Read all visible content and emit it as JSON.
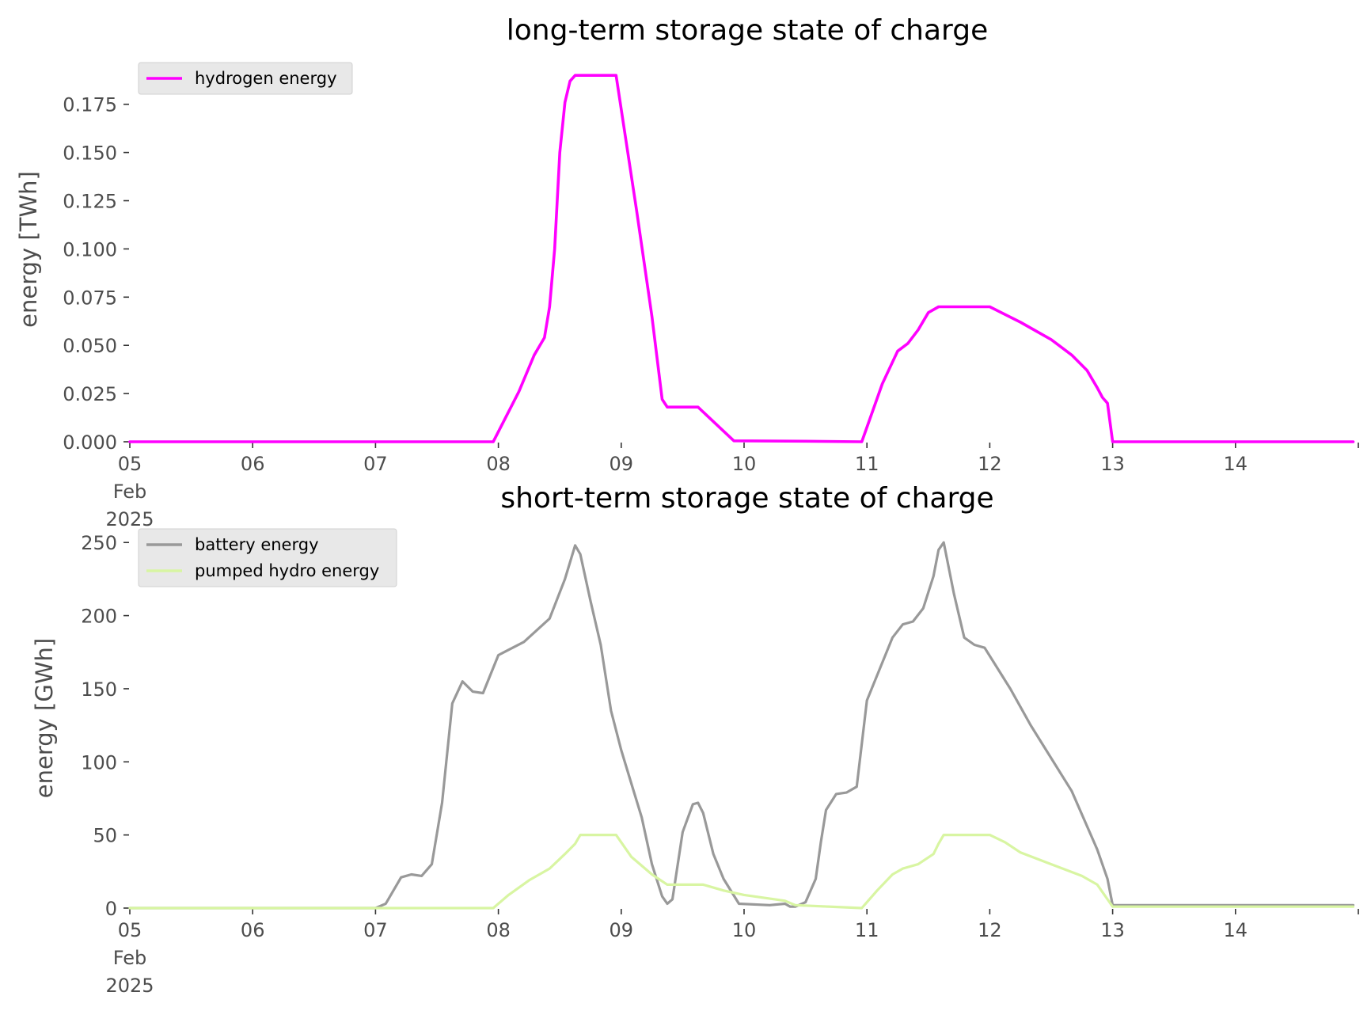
{
  "colors": {
    "hydrogen": "#ff00ff",
    "battery": "#999999",
    "pumped_hydro": "#d8f5a2",
    "legend_bg": "#e8e8e8"
  },
  "chart_data": [
    {
      "type": "line",
      "title": "long-term storage state of charge",
      "xlabel": "",
      "ylabel": "energy [TWh]",
      "x_axis": "date",
      "xlim": [
        "2025-02-05 00:00",
        "2025-02-15 00:00"
      ],
      "x_tick_labels": [
        {
          "x": "2025-02-05",
          "label": "05",
          "extra": [
            "Feb",
            "2025"
          ]
        },
        {
          "x": "2025-02-06",
          "label": "06"
        },
        {
          "x": "2025-02-07",
          "label": "07"
        },
        {
          "x": "2025-02-08",
          "label": "08"
        },
        {
          "x": "2025-02-09",
          "label": "09"
        },
        {
          "x": "2025-02-10",
          "label": "10"
        },
        {
          "x": "2025-02-11",
          "label": "11"
        },
        {
          "x": "2025-02-12",
          "label": "12"
        },
        {
          "x": "2025-02-13",
          "label": "13"
        },
        {
          "x": "2025-02-14",
          "label": "14"
        }
      ],
      "ylim": [
        0,
        0.195
      ],
      "y_ticks": [
        0,
        0.025,
        0.05,
        0.075,
        0.1,
        0.125,
        0.15,
        0.175
      ],
      "y_tick_labels": [
        "0.000",
        "0.025",
        "0.050",
        "0.075",
        "0.100",
        "0.125",
        "0.150",
        "0.175"
      ],
      "grid": false,
      "legend": "top-left",
      "series": [
        {
          "name": "hydrogen energy",
          "color": "#ff00ff",
          "x": [
            "2025-02-05 00:00",
            "2025-02-07 23:00",
            "2025-02-08 04:00",
            "2025-02-08 07:00",
            "2025-02-08 09:00",
            "2025-02-08 10:00",
            "2025-02-08 11:00",
            "2025-02-08 12:00",
            "2025-02-08 13:00",
            "2025-02-08 14:00",
            "2025-02-08 15:00",
            "2025-02-08 16:00",
            "2025-02-08 17:00",
            "2025-02-08 23:00",
            "2025-02-09 03:00",
            "2025-02-09 06:00",
            "2025-02-09 08:00",
            "2025-02-09 09:00",
            "2025-02-09 10:00",
            "2025-02-09 15:00",
            "2025-02-09 22:00",
            "2025-02-10 12:00",
            "2025-02-10 23:00",
            "2025-02-11 03:00",
            "2025-02-11 06:00",
            "2025-02-11 08:00",
            "2025-02-11 10:00",
            "2025-02-11 12:00",
            "2025-02-11 14:00",
            "2025-02-12 00:00",
            "2025-02-12 06:00",
            "2025-02-12 12:00",
            "2025-02-12 16:00",
            "2025-02-12 19:00",
            "2025-02-12 21:00",
            "2025-02-12 22:00",
            "2025-02-12 23:00",
            "2025-02-13 00:00",
            "2025-02-14 23:00"
          ],
          "y": [
            0.0,
            0.0,
            0.026,
            0.045,
            0.054,
            0.07,
            0.1,
            0.15,
            0.176,
            0.187,
            0.19,
            0.19,
            0.19,
            0.19,
            0.12,
            0.065,
            0.022,
            0.018,
            0.018,
            0.018,
            0.0005,
            0.0003,
            0.0,
            0.03,
            0.047,
            0.051,
            0.058,
            0.067,
            0.07,
            0.07,
            0.062,
            0.053,
            0.045,
            0.037,
            0.028,
            0.023,
            0.02,
            0.0,
            0.0
          ]
        }
      ]
    },
    {
      "type": "line",
      "title": "short-term storage state of charge",
      "xlabel": "",
      "ylabel": "energy [GWh]",
      "x_axis": "date",
      "xlim": [
        "2025-02-05 00:00",
        "2025-02-15 00:00"
      ],
      "x_tick_labels": [
        {
          "x": "2025-02-05",
          "label": "05",
          "extra": [
            "Feb",
            "2025"
          ]
        },
        {
          "x": "2025-02-06",
          "label": "06"
        },
        {
          "x": "2025-02-07",
          "label": "07"
        },
        {
          "x": "2025-02-08",
          "label": "08"
        },
        {
          "x": "2025-02-09",
          "label": "09"
        },
        {
          "x": "2025-02-10",
          "label": "10"
        },
        {
          "x": "2025-02-11",
          "label": "11"
        },
        {
          "x": "2025-02-12",
          "label": "12"
        },
        {
          "x": "2025-02-13",
          "label": "13"
        },
        {
          "x": "2025-02-14",
          "label": "14"
        }
      ],
      "ylim": [
        0,
        255
      ],
      "y_ticks": [
        0,
        50,
        100,
        150,
        200,
        250
      ],
      "y_tick_labels": [
        "0",
        "50",
        "100",
        "150",
        "200",
        "250"
      ],
      "grid": false,
      "legend": "top-left",
      "series": [
        {
          "name": "battery energy",
          "color": "#999999",
          "x": [
            "2025-02-05 00:00",
            "2025-02-07 00:00",
            "2025-02-07 02:00",
            "2025-02-07 05:00",
            "2025-02-07 07:00",
            "2025-02-07 09:00",
            "2025-02-07 11:00",
            "2025-02-07 13:00",
            "2025-02-07 15:00",
            "2025-02-07 17:00",
            "2025-02-07 19:00",
            "2025-02-07 21:00",
            "2025-02-08 00:00",
            "2025-02-08 05:00",
            "2025-02-08 10:00",
            "2025-02-08 13:00",
            "2025-02-08 15:00",
            "2025-02-08 16:00",
            "2025-02-08 18:00",
            "2025-02-08 20:00",
            "2025-02-08 22:00",
            "2025-02-09 00:00",
            "2025-02-09 02:00",
            "2025-02-09 04:00",
            "2025-02-09 06:00",
            "2025-02-09 08:00",
            "2025-02-09 09:00",
            "2025-02-09 10:00",
            "2025-02-09 12:00",
            "2025-02-09 14:00",
            "2025-02-09 15:00",
            "2025-02-09 16:00",
            "2025-02-09 18:00",
            "2025-02-09 20:00",
            "2025-02-09 23:00",
            "2025-02-10 05:00",
            "2025-02-10 08:00",
            "2025-02-10 09:00",
            "2025-02-10 10:00",
            "2025-02-10 12:00",
            "2025-02-10 14:00",
            "2025-02-10 15:00",
            "2025-02-10 16:00",
            "2025-02-10 18:00",
            "2025-02-10 20:00",
            "2025-02-10 22:00",
            "2025-02-11 00:00",
            "2025-02-11 05:00",
            "2025-02-11 07:00",
            "2025-02-11 09:00",
            "2025-02-11 11:00",
            "2025-02-11 13:00",
            "2025-02-11 14:00",
            "2025-02-11 15:00",
            "2025-02-11 17:00",
            "2025-02-11 19:00",
            "2025-02-11 21:00",
            "2025-02-11 23:00",
            "2025-02-12 04:00",
            "2025-02-12 08:00",
            "2025-02-12 16:00",
            "2025-02-12 21:00",
            "2025-02-12 23:00",
            "2025-02-13 00:00",
            "2025-02-14 23:00"
          ],
          "y": [
            0,
            0,
            3,
            21,
            23,
            22,
            30,
            72,
            140,
            155,
            148,
            147,
            173,
            182,
            198,
            225,
            248,
            242,
            210,
            180,
            135,
            108,
            85,
            62,
            30,
            8,
            3,
            6,
            52,
            71,
            72,
            65,
            37,
            20,
            3,
            2,
            3,
            1,
            1,
            4,
            20,
            45,
            67,
            78,
            79,
            83,
            142,
            185,
            194,
            196,
            205,
            227,
            245,
            250,
            215,
            185,
            180,
            178,
            150,
            125,
            80,
            40,
            20,
            2,
            2
          ]
        },
        {
          "name": "pumped hydro energy",
          "color": "#d8f5a2",
          "x": [
            "2025-02-05 00:00",
            "2025-02-07 23:00",
            "2025-02-08 02:00",
            "2025-02-08 06:00",
            "2025-02-08 10:00",
            "2025-02-08 13:00",
            "2025-02-08 15:00",
            "2025-02-08 16:00",
            "2025-02-08 23:00",
            "2025-02-09 02:00",
            "2025-02-09 06:00",
            "2025-02-09 09:00",
            "2025-02-09 12:00",
            "2025-02-09 16:00",
            "2025-02-09 20:00",
            "2025-02-10 00:00",
            "2025-02-10 06:00",
            "2025-02-10 08:00",
            "2025-02-10 10:00",
            "2025-02-10 23:00",
            "2025-02-11 02:00",
            "2025-02-11 05:00",
            "2025-02-11 07:00",
            "2025-02-11 10:00",
            "2025-02-11 13:00",
            "2025-02-11 14:00",
            "2025-02-11 15:00",
            "2025-02-12 00:00",
            "2025-02-12 03:00",
            "2025-02-12 06:00",
            "2025-02-12 12:00",
            "2025-02-12 18:00",
            "2025-02-12 21:00",
            "2025-02-13 00:00",
            "2025-02-14 23:00"
          ],
          "y": [
            0,
            0,
            9,
            19,
            27,
            37,
            44,
            50,
            50,
            35,
            23,
            16,
            16,
            16,
            12,
            9,
            6,
            5,
            2,
            0,
            12,
            23,
            27,
            30,
            37,
            44,
            50,
            50,
            45,
            38,
            30,
            22,
            16,
            1,
            1
          ]
        }
      ]
    }
  ]
}
